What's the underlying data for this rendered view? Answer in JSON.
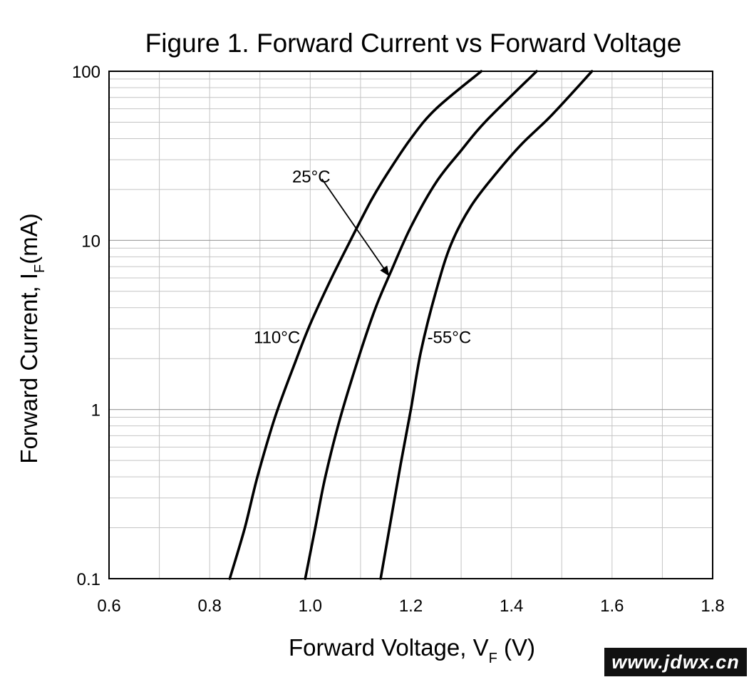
{
  "chart_data": {
    "type": "line",
    "title": "Figure 1. Forward Current vs Forward Voltage",
    "xlabel": {
      "main": "Forward Voltage, V",
      "sub": "F",
      "unit": "(V)"
    },
    "ylabel": {
      "main": "Forward Current, I",
      "sub": "F",
      "unit": "(mA)"
    },
    "xlim": [
      0.6,
      1.8
    ],
    "ylim": [
      0.1,
      100
    ],
    "y_scale": "log",
    "grid": true,
    "x_ticks": [
      "0.6",
      "0.8",
      "1.0",
      "1.2",
      "1.4",
      "1.6",
      "1.8"
    ],
    "y_ticks": [
      "0.1",
      "1",
      "10",
      "100"
    ],
    "series": [
      {
        "name": "110°C",
        "points": [
          [
            0.84,
            0.1
          ],
          [
            0.87,
            0.2
          ],
          [
            0.895,
            0.4
          ],
          [
            0.93,
            0.9
          ],
          [
            0.97,
            1.9
          ],
          [
            1.0,
            3.2
          ],
          [
            1.04,
            5.8
          ],
          [
            1.08,
            10
          ],
          [
            1.12,
            17
          ],
          [
            1.15,
            24
          ],
          [
            1.2,
            40
          ],
          [
            1.25,
            60
          ],
          [
            1.34,
            100
          ]
        ]
      },
      {
        "name": "25°C",
        "points": [
          [
            0.99,
            0.1
          ],
          [
            1.01,
            0.2
          ],
          [
            1.03,
            0.4
          ],
          [
            1.06,
            0.9
          ],
          [
            1.1,
            2.2
          ],
          [
            1.13,
            4.0
          ],
          [
            1.16,
            6.5
          ],
          [
            1.2,
            12
          ],
          [
            1.25,
            22
          ],
          [
            1.3,
            34
          ],
          [
            1.35,
            51
          ],
          [
            1.45,
            100
          ]
        ]
      },
      {
        "name": "-55°C",
        "points": [
          [
            1.14,
            0.1
          ],
          [
            1.16,
            0.22
          ],
          [
            1.18,
            0.48
          ],
          [
            1.2,
            1.0
          ],
          [
            1.22,
            2.2
          ],
          [
            1.25,
            5.0
          ],
          [
            1.28,
            9.5
          ],
          [
            1.32,
            16
          ],
          [
            1.37,
            25
          ],
          [
            1.42,
            37
          ],
          [
            1.48,
            55
          ],
          [
            1.56,
            100
          ]
        ]
      }
    ],
    "annotations": [
      {
        "text": "110°C",
        "x": 0.98,
        "y": 2.7
      },
      {
        "text": "25°C",
        "x": 1.04,
        "y": 24
      },
      {
        "text": "-55°C",
        "x": 1.32,
        "y": 2.7
      }
    ],
    "arrow": {
      "from": [
        1.08,
        19
      ],
      "to": [
        1.16,
        6.2
      ]
    }
  },
  "watermark": "www.jdwx.cn",
  "colors": {
    "curve": "#000000",
    "grid_major": "#9a9a9a",
    "grid_minor": "#c4c4c4",
    "watermark_bg": "#111111"
  }
}
